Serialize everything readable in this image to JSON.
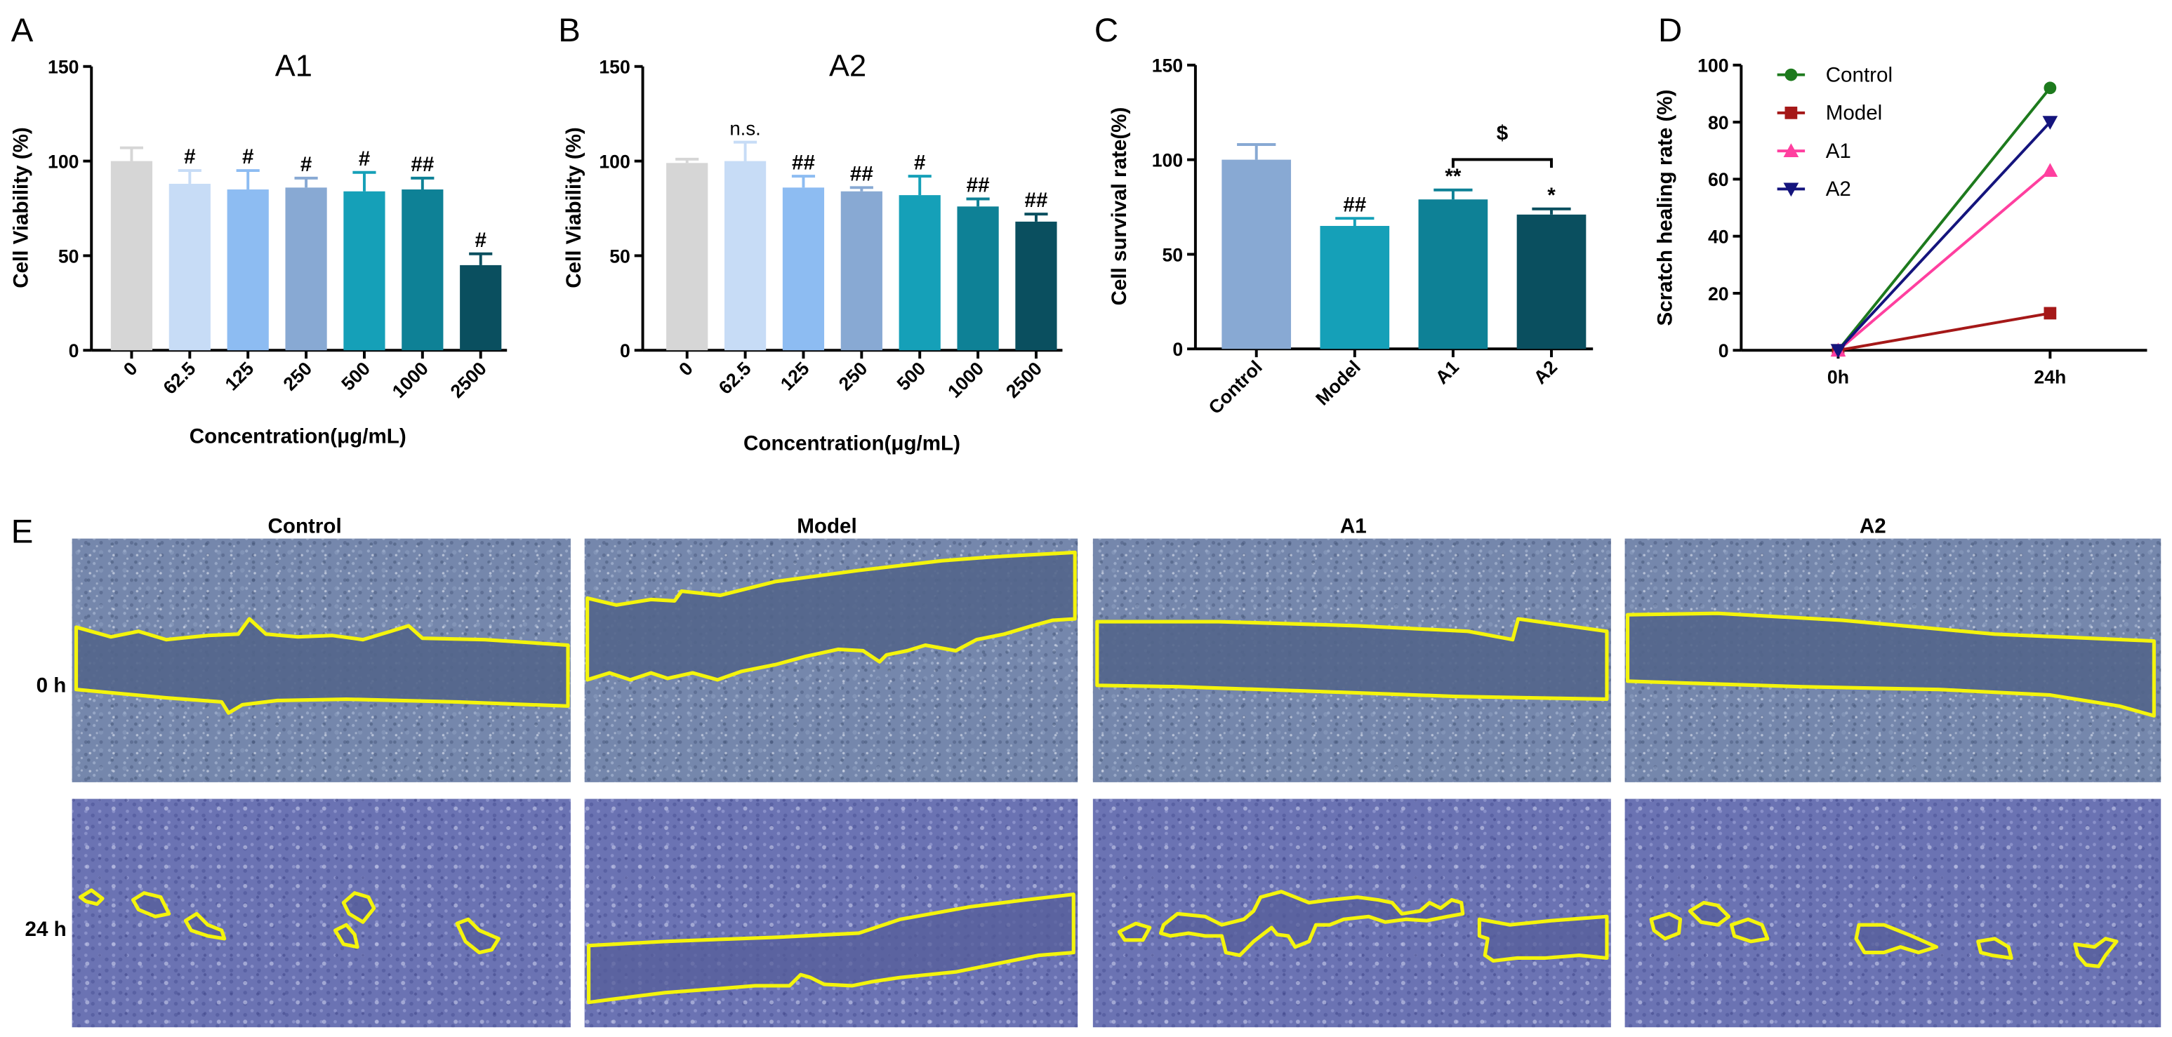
{
  "chart_data": [
    {
      "panel_label": "A",
      "type": "bar",
      "title": "A1",
      "xlabel": "Concentration(μg/mL)",
      "ylabel": "Cell Viability (%)",
      "ylim": [
        0,
        150
      ],
      "yticks": [
        0,
        50,
        100,
        150
      ],
      "categories": [
        "0",
        "62.5",
        "125",
        "250",
        "500",
        "1000",
        "2500"
      ],
      "values": [
        100,
        88,
        85,
        86,
        84,
        85,
        45
      ],
      "errors": [
        7,
        7,
        10,
        5,
        10,
        6,
        6
      ],
      "annotations": [
        null,
        "#",
        "#",
        "#",
        "#",
        "##",
        "#"
      ],
      "colors": [
        "#d6d6d6",
        "#c7dcf6",
        "#8dbcf2",
        "#88a9d3",
        "#15a0b8",
        "#0e8196",
        "#0a4f5f"
      ]
    },
    {
      "panel_label": "B",
      "type": "bar",
      "title": "A2",
      "xlabel": "Concentration(μg/mL)",
      "ylabel": "Cell Viability (%)",
      "ylim": [
        0,
        150
      ],
      "yticks": [
        0,
        50,
        100,
        150
      ],
      "categories": [
        "0",
        "62.5",
        "125",
        "250",
        "500",
        "1000",
        "2500"
      ],
      "values": [
        99,
        100,
        86,
        84,
        82,
        76,
        68
      ],
      "errors": [
        2,
        10,
        6,
        2,
        10,
        4,
        4
      ],
      "annotations": [
        null,
        "n.s.",
        "##",
        "##",
        "#",
        "##",
        "##"
      ],
      "colors": [
        "#d6d6d6",
        "#c7dcf6",
        "#8dbcf2",
        "#88a9d3",
        "#15a0b8",
        "#0e8196",
        "#0a4f5f"
      ]
    },
    {
      "panel_label": "C",
      "type": "bar",
      "title": null,
      "xlabel": null,
      "ylabel": "Cell survival rate(%)",
      "ylim": [
        0,
        150
      ],
      "yticks": [
        0,
        50,
        100,
        150
      ],
      "categories": [
        "Control",
        "Model",
        "A1",
        "A2"
      ],
      "values": [
        100,
        65,
        79,
        71
      ],
      "errors": [
        8,
        4,
        5,
        3
      ],
      "annotations": [
        null,
        "##",
        "**",
        "*"
      ],
      "comparison": {
        "between": [
          2,
          3
        ],
        "label": "$"
      },
      "colors": [
        "#88a9d3",
        "#15a0b8",
        "#0e8196",
        "#0a4f5f"
      ]
    },
    {
      "panel_label": "D",
      "type": "line",
      "ylabel": "Scratch healing rate (%)",
      "ylim": [
        0,
        100
      ],
      "yticks": [
        0,
        20,
        40,
        60,
        80,
        100
      ],
      "x": [
        "0h",
        "24h"
      ],
      "series": [
        {
          "name": "Control",
          "values": [
            0,
            92
          ],
          "color": "#1d7a1d"
        },
        {
          "name": "Model",
          "values": [
            0,
            13
          ],
          "color": "#a51818"
        },
        {
          "name": "A1",
          "values": [
            0,
            63
          ],
          "color": "#ff3f9f"
        },
        {
          "name": "A2",
          "values": [
            0,
            80
          ],
          "color": "#14147d"
        }
      ]
    }
  ],
  "micrograph_panel": {
    "panel_label": "E",
    "columns": [
      "Control",
      "Model",
      "A1",
      "A2"
    ],
    "rows": [
      "0 h",
      "24 h"
    ],
    "outline_color": "#f4f40c"
  }
}
